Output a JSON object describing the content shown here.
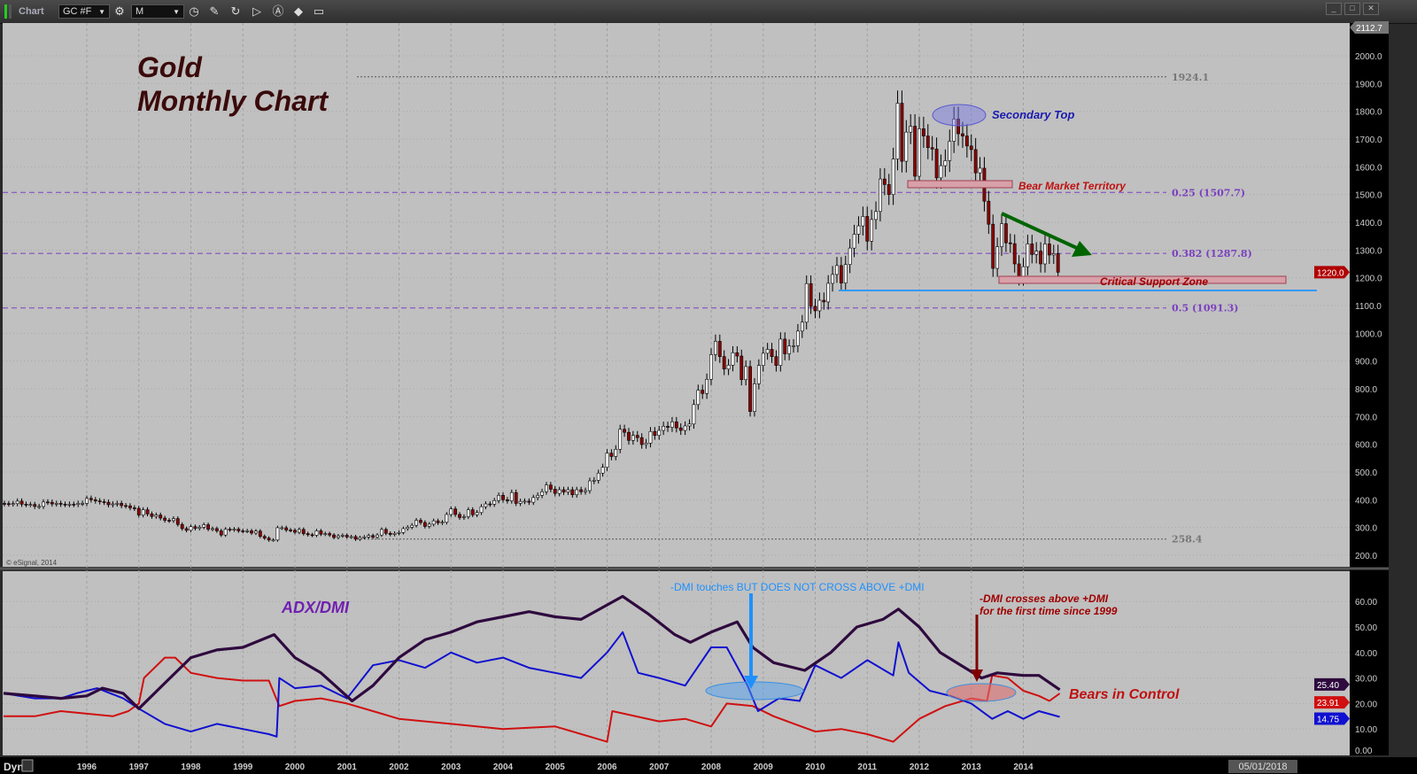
{
  "toolbar": {
    "title": "Chart",
    "symbol": "GC #F",
    "interval": "M",
    "icons": [
      "settings-gear-icon",
      "clock-icon",
      "pencil-icon",
      "refresh-icon",
      "play-icon",
      "alert-icon",
      "eraser-icon",
      "comment-icon"
    ],
    "window_controls": [
      "minimize",
      "maximize",
      "close"
    ]
  },
  "annotations": {
    "title_line1": "Gold",
    "title_line2": "Monthly Chart",
    "secondary_top": "Secondary Top",
    "bear_market": "Bear Market Territory",
    "critical_support": "Critical Support Zone",
    "indicator_title": "ADX/DMI",
    "dmi_touch": "-DMI touches BUT DOES NOT CROSS ABOVE +DMI",
    "dmi_cross_line1": "-DMI crosses above +DMI",
    "dmi_cross_line2": "for the first time since 1999",
    "bears": "Bears in Control",
    "copyright": "© eSignal, 2014"
  },
  "colors": {
    "background": "#c0c0c0",
    "up_candle": "#ffffff",
    "down_candle": "#8b0000",
    "adx": "#2e0a3e",
    "plus_dmi": "#1010d0",
    "minus_dmi": "#d01010",
    "fib": "#7a3fc0",
    "annotation_blue": "#1e90ff",
    "annotation_red": "#a00000",
    "trend_arrow": "#006400"
  },
  "bottom_bar": {
    "mode": "Dyn",
    "cursor_date": "05/01/2018"
  },
  "chart_data": [
    {
      "type": "candlestick",
      "title": "Gold Monthly Chart",
      "symbol": "GC #F",
      "start": "1994-06",
      "monthly_close": [
        386,
        385,
        386,
        395,
        384,
        383,
        383,
        376,
        376,
        392,
        391,
        385,
        387,
        384,
        383,
        384,
        383,
        387,
        387,
        405,
        400,
        396,
        393,
        391,
        382,
        385,
        387,
        379,
        378,
        371,
        369,
        345,
        364,
        349,
        340,
        345,
        334,
        326,
        325,
        332,
        311,
        296,
        290,
        303,
        297,
        301,
        310,
        294,
        296,
        288,
        273,
        294,
        292,
        294,
        288,
        287,
        288,
        280,
        287,
        268,
        262,
        255,
        255,
        299,
        299,
        291,
        290,
        283,
        293,
        278,
        274,
        272,
        288,
        276,
        278,
        273,
        264,
        270,
        272,
        266,
        267,
        258,
        264,
        266,
        271,
        265,
        273,
        293,
        279,
        275,
        279,
        282,
        296,
        301,
        308,
        326,
        318,
        304,
        312,
        324,
        317,
        319,
        347,
        367,
        347,
        336,
        339,
        364,
        346,
        354,
        375,
        385,
        384,
        397,
        416,
        400,
        396,
        426,
        387,
        394,
        395,
        391,
        408,
        416,
        429,
        453,
        438,
        423,
        436,
        428,
        436,
        418,
        436,
        429,
        433,
        468,
        470,
        496,
        517,
        568,
        556,
        582,
        654,
        643,
        614,
        632,
        624,
        599,
        604,
        646,
        632,
        650,
        665,
        661,
        681,
        659,
        650,
        666,
        673,
        743,
        795,
        783,
        834,
        923,
        971,
        916,
        871,
        885,
        930,
        918,
        833,
        880,
        718,
        818,
        884,
        928,
        942,
        916,
        884,
        979,
        926,
        954,
        955,
        1008,
        1040,
        1179,
        1097,
        1081,
        1119,
        1113,
        1180,
        1212,
        1244,
        1181,
        1248,
        1307,
        1357,
        1387,
        1421,
        1332,
        1410,
        1439,
        1556,
        1536,
        1500,
        1628,
        1829,
        1620,
        1725,
        1746,
        1566,
        1737,
        1711,
        1669,
        1664,
        1560,
        1604,
        1622,
        1692,
        1772,
        1719,
        1711,
        1675,
        1662,
        1578,
        1595,
        1476,
        1393,
        1234,
        1312,
        1395,
        1326,
        1323,
        1250,
        1202,
        1240,
        1322,
        1284,
        1296,
        1250,
        1322,
        1282,
        1287,
        1220
      ],
      "last_price": "1220.0",
      "axis_top_label": "2112.7",
      "ylim": [
        200,
        2000
      ],
      "y_ticks": [
        "2000.0",
        "1900.0",
        "1800.0",
        "1700.0",
        "1600.0",
        "1500.0",
        "1400.0",
        "1300.0",
        "1200.0",
        "1100.0",
        "1000.0",
        "900.0",
        "800.0",
        "700.0",
        "600.0",
        "500.0",
        "400.0",
        "300.0",
        "200.0"
      ],
      "x_ticks": [
        "1996",
        "1997",
        "1998",
        "1999",
        "2000",
        "2001",
        "2002",
        "2003",
        "2004",
        "2005",
        "2006",
        "2007",
        "2008",
        "2009",
        "2010",
        "2011",
        "2012",
        "2013",
        "2014"
      ],
      "levels": [
        {
          "value": 1924.1,
          "label": "1924.1",
          "style": "dotted"
        },
        {
          "value": 1507.7,
          "label": "0.25 (1507.7)",
          "style": "fib"
        },
        {
          "value": 1287.8,
          "label": "0.382 (1287.8)",
          "style": "fib"
        },
        {
          "value": 1091.3,
          "label": "0.5 (1091.3)",
          "style": "fib"
        },
        {
          "value": 258.4,
          "label": "258.4",
          "style": "dotted"
        }
      ],
      "grid": true
    },
    {
      "type": "line",
      "title": "ADX/DMI",
      "ylim": [
        0,
        65
      ],
      "y_ticks": [
        "60.00",
        "50.00",
        "40.00",
        "30.00",
        "20.00",
        "10.00",
        "0.00"
      ],
      "last_values": {
        "adx": "25.40",
        "minus_dmi": "23.91",
        "plus_dmi": "14.75"
      },
      "series": [
        {
          "key": "adx",
          "points": [
            [
              1994.4,
              24
            ],
            [
              1995,
              23
            ],
            [
              1995.5,
              22
            ],
            [
              1996,
              23
            ],
            [
              1996.3,
              26
            ],
            [
              1996.7,
              24
            ],
            [
              1997,
              18
            ],
            [
              1997.5,
              28
            ],
            [
              1998,
              38
            ],
            [
              1998.5,
              41
            ],
            [
              1999,
              42
            ],
            [
              1999.6,
              47
            ],
            [
              2000,
              38
            ],
            [
              2000.5,
              32
            ],
            [
              2001.1,
              21
            ],
            [
              2001.5,
              27
            ],
            [
              2002,
              38
            ],
            [
              2002.5,
              45
            ],
            [
              2003,
              48
            ],
            [
              2003.5,
              52
            ],
            [
              2004,
              54
            ],
            [
              2004.5,
              56
            ],
            [
              2005,
              54
            ],
            [
              2005.5,
              53
            ],
            [
              2006.3,
              62
            ],
            [
              2006.8,
              55
            ],
            [
              2007.3,
              47
            ],
            [
              2007.6,
              44
            ],
            [
              2008,
              48
            ],
            [
              2008.5,
              52
            ],
            [
              2008.8,
              42
            ],
            [
              2009.2,
              36
            ],
            [
              2009.8,
              33
            ],
            [
              2010.3,
              40
            ],
            [
              2010.8,
              50
            ],
            [
              2011.3,
              53
            ],
            [
              2011.6,
              57
            ],
            [
              2012,
              50
            ],
            [
              2012.4,
              40
            ],
            [
              2012.8,
              35
            ],
            [
              2013.2,
              30
            ],
            [
              2013.5,
              32
            ],
            [
              2014,
              31
            ],
            [
              2014.3,
              31
            ],
            [
              2014.7,
              25.4
            ]
          ]
        },
        {
          "key": "plus_dmi",
          "points": [
            [
              1994.4,
              24
            ],
            [
              1995,
              22
            ],
            [
              1995.5,
              22
            ],
            [
              1995.8,
              24
            ],
            [
              1996.2,
              26
            ],
            [
              1996.7,
              22
            ],
            [
              1997,
              18
            ],
            [
              1997.5,
              12
            ],
            [
              1998,
              9
            ],
            [
              1998.5,
              12
            ],
            [
              1999,
              10
            ],
            [
              1999.5,
              8
            ],
            [
              1999.65,
              7
            ],
            [
              1999.7,
              30
            ],
            [
              2000,
              26
            ],
            [
              2000.5,
              27
            ],
            [
              2001,
              22
            ],
            [
              2001.5,
              35
            ],
            [
              2002,
              37
            ],
            [
              2002.5,
              34
            ],
            [
              2003,
              40
            ],
            [
              2003.5,
              36
            ],
            [
              2004,
              38
            ],
            [
              2004.5,
              34
            ],
            [
              2005,
              32
            ],
            [
              2005.5,
              30
            ],
            [
              2006,
              40
            ],
            [
              2006.3,
              48
            ],
            [
              2006.6,
              32
            ],
            [
              2007,
              30
            ],
            [
              2007.5,
              27
            ],
            [
              2008,
              42
            ],
            [
              2008.3,
              42
            ],
            [
              2008.7,
              27
            ],
            [
              2008.9,
              17
            ],
            [
              2009.3,
              22
            ],
            [
              2009.7,
              21
            ],
            [
              2010,
              35
            ],
            [
              2010.5,
              30
            ],
            [
              2011,
              37
            ],
            [
              2011.5,
              31
            ],
            [
              2011.6,
              44
            ],
            [
              2011.8,
              32
            ],
            [
              2012.2,
              25
            ],
            [
              2012.6,
              23
            ],
            [
              2013,
              20
            ],
            [
              2013.4,
              14
            ],
            [
              2013.7,
              17
            ],
            [
              2014,
              14
            ],
            [
              2014.3,
              17
            ],
            [
              2014.7,
              14.75
            ]
          ]
        },
        {
          "key": "minus_dmi",
          "points": [
            [
              1994.4,
              15
            ],
            [
              1995,
              15
            ],
            [
              1995.5,
              17
            ],
            [
              1996,
              16
            ],
            [
              1996.5,
              15
            ],
            [
              1996.8,
              17
            ],
            [
              1997,
              20
            ],
            [
              1997.1,
              30
            ],
            [
              1997.5,
              38
            ],
            [
              1997.7,
              38
            ],
            [
              1998,
              32
            ],
            [
              1998.5,
              30
            ],
            [
              1999,
              29
            ],
            [
              1999.5,
              29
            ],
            [
              1999.7,
              19
            ],
            [
              2000,
              21
            ],
            [
              2000.5,
              22
            ],
            [
              2001,
              20
            ],
            [
              2001.5,
              17
            ],
            [
              2002,
              14
            ],
            [
              2003,
              12
            ],
            [
              2004,
              10
            ],
            [
              2005,
              11
            ],
            [
              2006,
              5
            ],
            [
              2006.1,
              17
            ],
            [
              2007,
              13
            ],
            [
              2007.5,
              14
            ],
            [
              2008,
              11
            ],
            [
              2008.3,
              20
            ],
            [
              2008.8,
              19
            ],
            [
              2009.2,
              15
            ],
            [
              2010,
              9
            ],
            [
              2010.5,
              10
            ],
            [
              2011,
              8
            ],
            [
              2011.5,
              5
            ],
            [
              2012,
              14
            ],
            [
              2012.5,
              19
            ],
            [
              2013,
              22
            ],
            [
              2013.3,
              21
            ],
            [
              2013.4,
              31
            ],
            [
              2013.7,
              30
            ],
            [
              2014,
              25
            ],
            [
              2014.3,
              23
            ],
            [
              2014.5,
              21
            ],
            [
              2014.7,
              23.91
            ]
          ]
        }
      ]
    }
  ]
}
